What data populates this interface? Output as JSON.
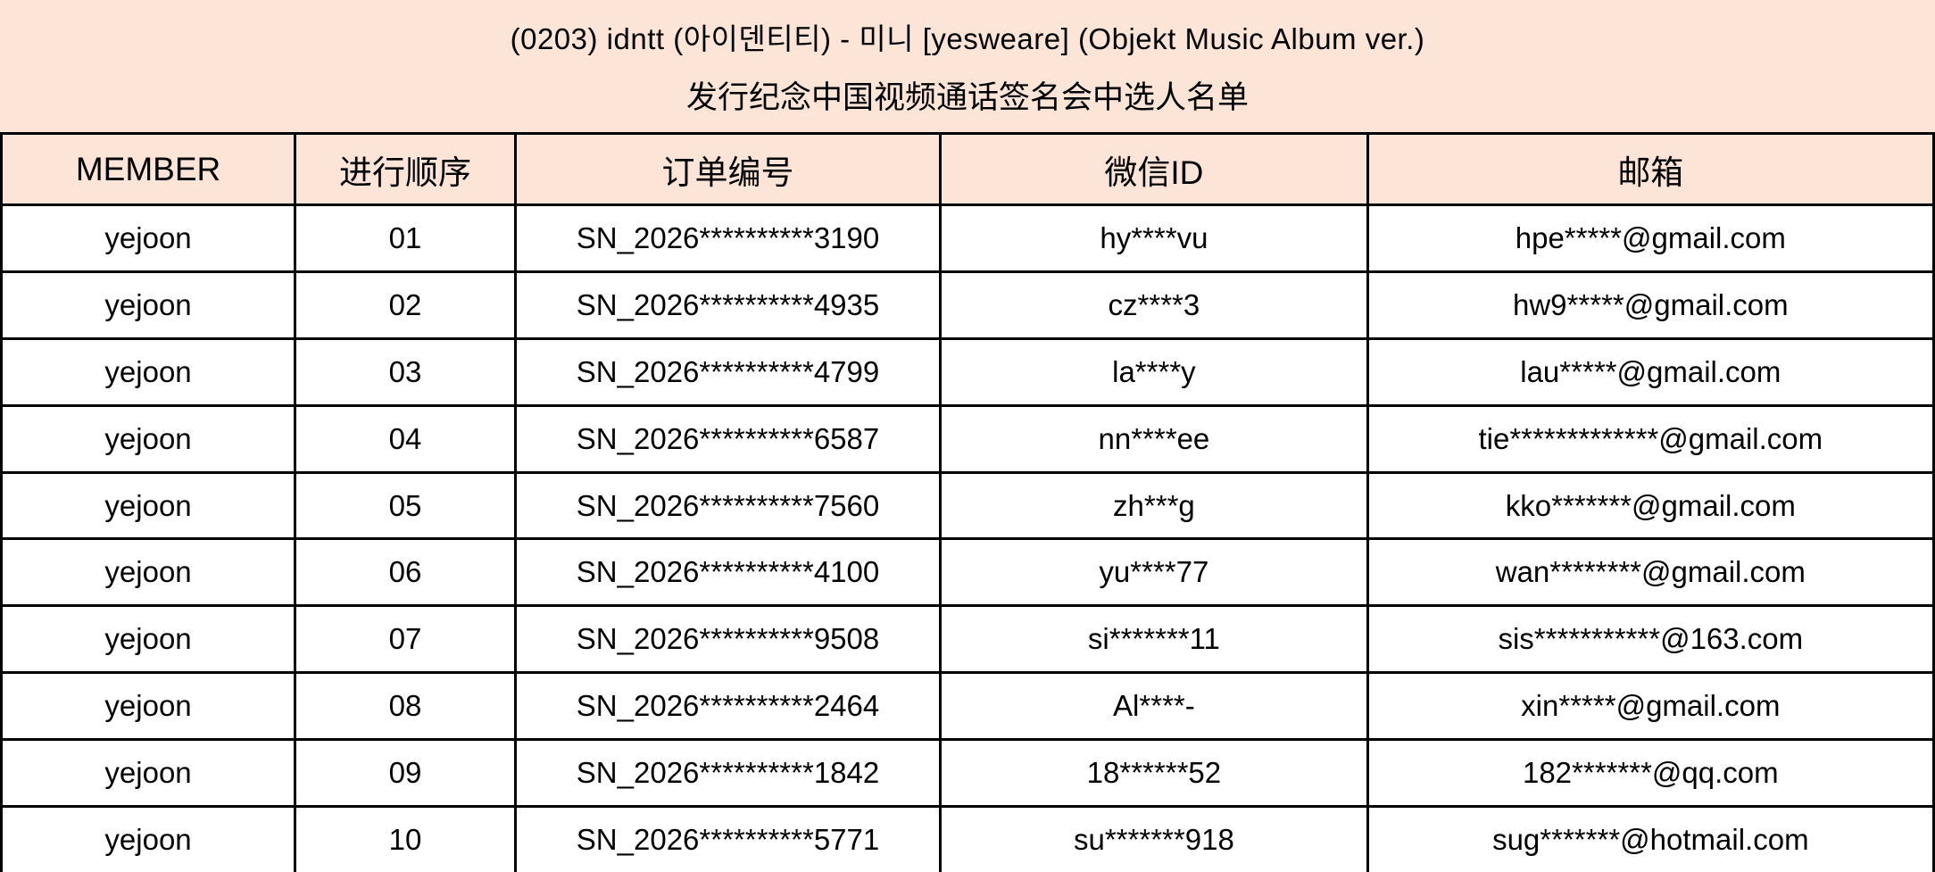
{
  "title": {
    "line1": "(0203) idntt (아이덴티티) - 미니 [yesweare] (Objekt Music Album ver.)",
    "line2": "发行纪念中国视频通话签名会中选人名单"
  },
  "colors": {
    "header_bg": "#FCE4D6",
    "border": "#000000",
    "row_bg": "#FFFFFF",
    "text": "#000000"
  },
  "table": {
    "columns": [
      "MEMBER",
      "进行顺序",
      "订单编号",
      "微信ID",
      "邮箱"
    ],
    "rows": [
      [
        "yejoon",
        "01",
        "SN_2026**********3190",
        "hy****vu",
        "hpe*****@gmail.com"
      ],
      [
        "yejoon",
        "02",
        "SN_2026**********4935",
        "cz****3",
        "hw9*****@gmail.com"
      ],
      [
        "yejoon",
        "03",
        "SN_2026**********4799",
        "la****y",
        "lau*****@gmail.com"
      ],
      [
        "yejoon",
        "04",
        "SN_2026**********6587",
        "nn****ee",
        "tie*************@gmail.com"
      ],
      [
        "yejoon",
        "05",
        "SN_2026**********7560",
        "zh***g",
        "kko*******@gmail.com"
      ],
      [
        "yejoon",
        "06",
        "SN_2026**********4100",
        "yu****77",
        "wan********@gmail.com"
      ],
      [
        "yejoon",
        "07",
        "SN_2026**********9508",
        "si*******11",
        "sis***********@163.com"
      ],
      [
        "yejoon",
        "08",
        "SN_2026**********2464",
        "Al****-",
        "xin*****@gmail.com"
      ],
      [
        "yejoon",
        "09",
        "SN_2026**********1842",
        "18******52",
        "182*******@qq.com"
      ],
      [
        "yejoon",
        "10",
        "SN_2026**********5771",
        "su*******918",
        "sug*******@hotmail.com"
      ]
    ]
  }
}
